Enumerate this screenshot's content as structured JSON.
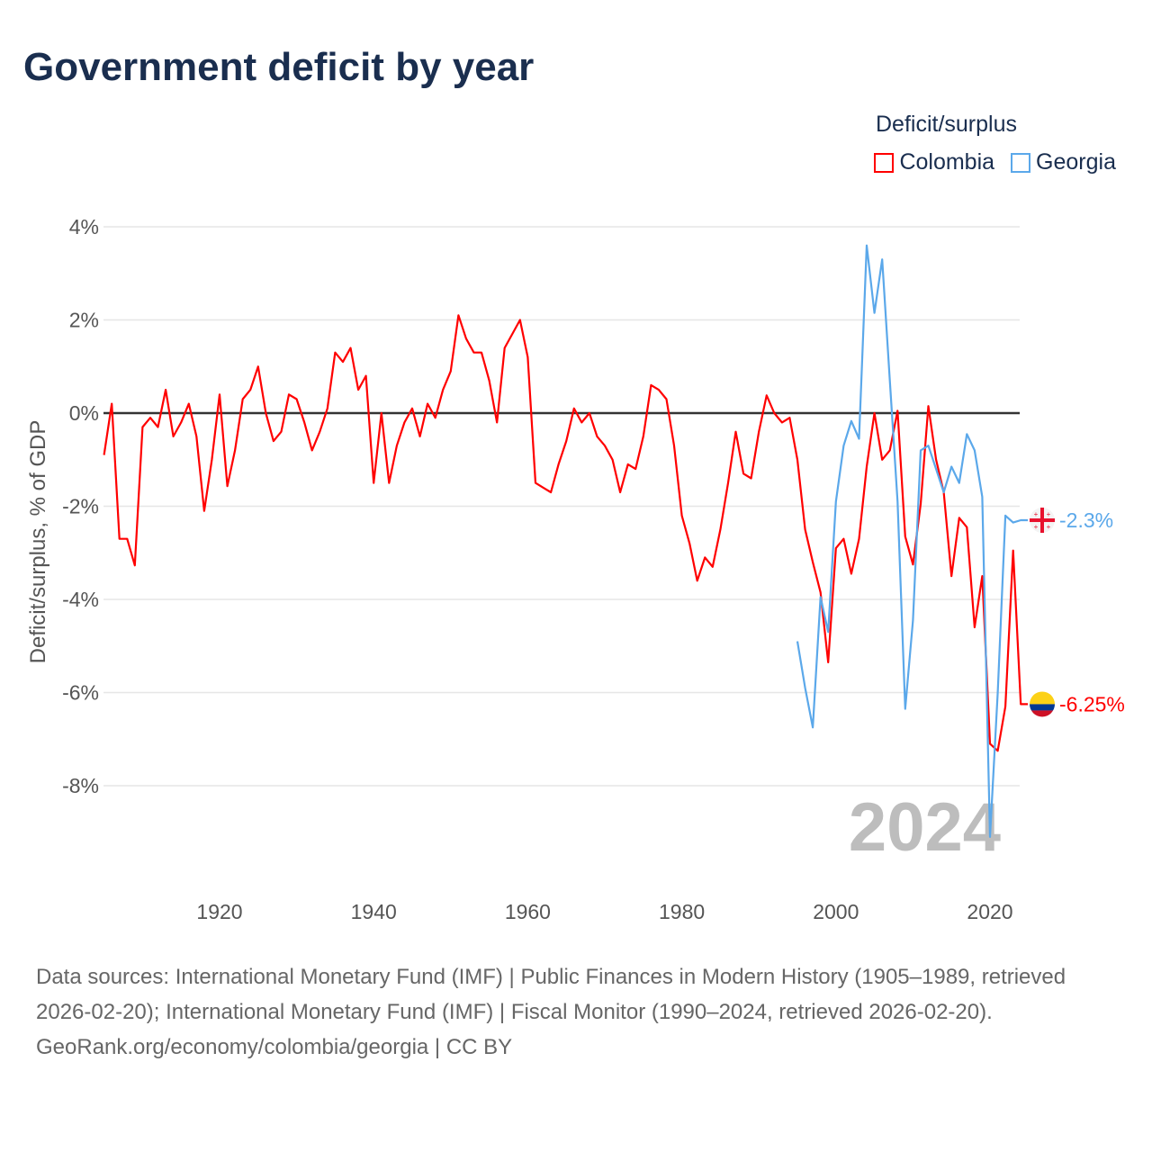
{
  "title": "Government deficit by year",
  "footer": {
    "sources": "Data sources: International Monetary Fund (IMF) | Public Finances in Modern History (1905–1989, retrieved 2026-02-20); International Monetary Fund (IMF) | Fiscal Monitor (1990–2024, retrieved 2026-02-20).",
    "credit": "GeoRank.org/economy/colombia/georgia | CC BY"
  },
  "chart_data": {
    "type": "line",
    "title": "Government deficit by year",
    "xlabel": "",
    "ylabel": "Deficit/surplus, % of GDP",
    "xlim": [
      1905,
      2024
    ],
    "ylim": [
      -10,
      4.2
    ],
    "x_ticks": [
      1920,
      1940,
      1960,
      1980,
      2000,
      2020
    ],
    "y_ticks": [
      4,
      2,
      0,
      -2,
      -4,
      -6,
      -8
    ],
    "y_tick_labels": [
      "4%",
      "2%",
      "0%",
      "-2%",
      "-4%",
      "-6%",
      "-8%"
    ],
    "grid": true,
    "legend_title": "Deficit/surplus",
    "legend_position": "top-right",
    "year_watermark": "2024",
    "series": [
      {
        "name": "Colombia",
        "color": "#ff0000",
        "end_label": "-6.25%",
        "start_year": 1905,
        "values": [
          -0.9,
          0.2,
          -2.7,
          -2.7,
          -3.27,
          -0.3,
          -0.1,
          -0.3,
          0.5,
          -0.5,
          -0.2,
          0.2,
          -0.5,
          -2.1,
          -1.0,
          0.4,
          -1.57,
          -0.8,
          0.3,
          0.5,
          1.0,
          0,
          -0.6,
          -0.4,
          0.4,
          0.3,
          -0.2,
          -0.8,
          -0.4,
          0.1,
          1.3,
          1.1,
          1.4,
          0.5,
          0.8,
          -1.5,
          0,
          -1.5,
          -0.7,
          -0.2,
          0.1,
          -0.5,
          0.2,
          -0.1,
          0.5,
          0.9,
          2.1,
          1.6,
          1.3,
          1.3,
          0.7,
          -0.2,
          1.4,
          1.7,
          2.0,
          1.2,
          -1.5,
          -1.6,
          -1.7,
          -1.1,
          -0.6,
          0.1,
          -0.2,
          0,
          -0.5,
          -0.7,
          -1.0,
          -1.7,
          -1.1,
          -1.2,
          -0.5,
          0.6,
          0.5,
          0.3,
          -0.7,
          -2.2,
          -2.8,
          -3.6,
          -3.1,
          -3.3,
          -2.5,
          -1.5,
          -0.4,
          -1.3,
          -1.4,
          -0.4,
          0.38,
          0,
          -0.2,
          -0.1,
          -1.0,
          -2.5,
          -3.2,
          -3.85,
          -5.35,
          -2.9,
          -2.7,
          -3.45,
          -2.7,
          -1.15,
          0,
          -1.0,
          -0.8,
          0.05,
          -2.65,
          -3.25,
          -1.95,
          0.15,
          -1.0,
          -1.7,
          -3.5,
          -2.25,
          -2.45,
          -4.6,
          -3.5,
          -7.1,
          -7.25,
          -6.3,
          -2.95,
          -6.25
        ]
      },
      {
        "name": "Georgia",
        "color": "#5ba8ea",
        "end_label": "-2.3%",
        "start_year": 1995,
        "values": [
          -4.9,
          -5.9,
          -6.75,
          -3.95,
          -4.7,
          -1.9,
          -0.7,
          -0.17,
          -0.55,
          3.6,
          2.15,
          3.3,
          0.7,
          -1.9,
          -6.35,
          -4.45,
          -0.8,
          -0.7,
          -1.2,
          -1.7,
          -1.15,
          -1.5,
          -0.45,
          -0.8,
          -1.8,
          -9.1,
          -6.0,
          -2.2,
          -2.35,
          -2.3
        ]
      }
    ]
  }
}
